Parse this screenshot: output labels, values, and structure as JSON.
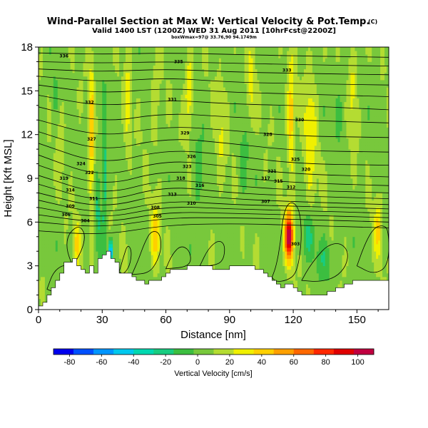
{
  "chart_data": {
    "type": "heatmap",
    "title": "Wind-Parallel Section at Max W: Vertical Velocity & Pot.Temp.",
    "title_mark": "(C)",
    "subtitle": "Valid 1400 LST (1200Z) WED 31 Aug 2011 [10hrFcst@2200Z]",
    "subsubtitle": "boxWmax=97@ 33.76,90 94.1749m",
    "xlabel": "Distance [nm]",
    "ylabel": "Height [Kft MSL]",
    "xlim": [
      0,
      165
    ],
    "ylim": [
      0,
      18
    ],
    "x_ticks": [
      0,
      30,
      60,
      90,
      120,
      150
    ],
    "y_ticks": [
      0,
      3,
      6,
      9,
      12,
      15,
      18
    ],
    "colorbar": {
      "label": "Vertical Velocity [cm/s]",
      "range": [
        -90,
        110
      ],
      "ticks": [
        -80,
        -60,
        -40,
        -20,
        0,
        20,
        40,
        60,
        80,
        100
      ],
      "colors": [
        "#0000ee",
        "#0050ff",
        "#0095ff",
        "#00c8ee",
        "#00d8b0",
        "#18cc80",
        "#3cbe40",
        "#78c83c",
        "#b4dc32",
        "#f0f000",
        "#ffd000",
        "#ffa000",
        "#ff6800",
        "#ff2800",
        "#e00000",
        "#c00040"
      ]
    },
    "terrain": [
      [
        0,
        0.3
      ],
      [
        2,
        0.5
      ],
      [
        4,
        1.0
      ],
      [
        6,
        1.5
      ],
      [
        8,
        2.0
      ],
      [
        10,
        2.6
      ],
      [
        12,
        3.2
      ],
      [
        14,
        3.3
      ],
      [
        16,
        3.6
      ],
      [
        18,
        3.0
      ],
      [
        20,
        2.8
      ],
      [
        22,
        2.5
      ],
      [
        24,
        3.0
      ],
      [
        26,
        2.6
      ],
      [
        28,
        3.4
      ],
      [
        30,
        3.8
      ],
      [
        32,
        4.0
      ],
      [
        34,
        3.6
      ],
      [
        36,
        3.2
      ],
      [
        38,
        2.6
      ],
      [
        40,
        2.4
      ],
      [
        42,
        2.5
      ],
      [
        44,
        2.3
      ],
      [
        46,
        2.0
      ],
      [
        50,
        1.8
      ],
      [
        55,
        2.0
      ],
      [
        60,
        2.6
      ],
      [
        65,
        2.8
      ],
      [
        70,
        2.9
      ],
      [
        75,
        3.0
      ],
      [
        80,
        2.9
      ],
      [
        85,
        2.8
      ],
      [
        90,
        2.9
      ],
      [
        95,
        3.0
      ],
      [
        100,
        2.9
      ],
      [
        105,
        2.6
      ],
      [
        110,
        2.0
      ],
      [
        114,
        1.6
      ],
      [
        118,
        1.8
      ],
      [
        122,
        1.2
      ],
      [
        126,
        1.0
      ],
      [
        132,
        1.0
      ],
      [
        138,
        1.2
      ],
      [
        142,
        1.6
      ],
      [
        146,
        1.8
      ],
      [
        150,
        2.0
      ],
      [
        156,
        2.0
      ],
      [
        160,
        2.0
      ],
      [
        165,
        2.0
      ]
    ],
    "updrafts": [
      {
        "x": 118,
        "z": 5.0,
        "amp": 97,
        "sx": 2.0,
        "sz": 1.7
      },
      {
        "x": 119,
        "z": 13.0,
        "amp": 38,
        "sx": 1.8,
        "sz": 4.0
      },
      {
        "x": 128,
        "z": 12.0,
        "amp": 26,
        "sx": 3.0,
        "sz": 4.5
      },
      {
        "x": 25,
        "z": 12.0,
        "amp": 36,
        "sx": 1.2,
        "sz": 6.0
      },
      {
        "x": 18,
        "z": 4.5,
        "amp": 30,
        "sx": 1.5,
        "sz": 1.5
      },
      {
        "x": 55,
        "z": 5.0,
        "amp": 34,
        "sx": 2.0,
        "sz": 2.2
      },
      {
        "x": 55,
        "z": 14.0,
        "amp": 16,
        "sx": 2.0,
        "sz": 3.0
      },
      {
        "x": 42,
        "z": 14.0,
        "amp": 20,
        "sx": 1.5,
        "sz": 4.0
      },
      {
        "x": 71,
        "z": 15.0,
        "amp": 32,
        "sx": 2.0,
        "sz": 2.5
      },
      {
        "x": 100,
        "z": 15.0,
        "amp": 20,
        "sx": 2.0,
        "sz": 3.0
      },
      {
        "x": 148,
        "z": 15.0,
        "amp": 22,
        "sx": 2.0,
        "sz": 3.0
      },
      {
        "x": 160,
        "z": 5.5,
        "amp": 30,
        "sx": 2.0,
        "sz": 2.0
      },
      {
        "x": 10,
        "z": 12.0,
        "amp": 14,
        "sx": 2.0,
        "sz": 3.0
      },
      {
        "x": 86,
        "z": 12.0,
        "amp": 16,
        "sx": 2.5,
        "sz": 3.5
      }
    ],
    "downdrafts": [
      {
        "x": 34,
        "z": 4.0,
        "amp": 70,
        "sx": 1.0,
        "sz": 0.8
      },
      {
        "x": 31,
        "z": 9.0,
        "amp": 34,
        "sx": 1.0,
        "sz": 5.0
      },
      {
        "x": 28,
        "z": 7.0,
        "amp": 24,
        "sx": 1.2,
        "sz": 3.0
      },
      {
        "x": 127,
        "z": 5.0,
        "amp": 22,
        "sx": 3.0,
        "sz": 1.5
      },
      {
        "x": 135,
        "z": 3.5,
        "amp": 18,
        "sx": 4.0,
        "sz": 1.5
      },
      {
        "x": 75,
        "z": 9.0,
        "amp": 12,
        "sx": 3.0,
        "sz": 4.0
      },
      {
        "x": 97,
        "z": 10.0,
        "amp": 10,
        "sx": 3.0,
        "sz": 4.0
      },
      {
        "x": 8,
        "z": 14.0,
        "amp": 10,
        "sx": 2.0,
        "sz": 3.0
      },
      {
        "x": 142,
        "z": 14.0,
        "amp": 10,
        "sx": 3.0,
        "sz": 3.0
      }
    ],
    "isentropes": [
      [
        [
          0,
          17.6
        ],
        [
          30,
          17.5
        ],
        [
          60,
          17.6
        ],
        [
          90,
          17.5
        ],
        [
          120,
          17.4
        ],
        [
          165,
          17.3
        ]
      ],
      [
        [
          0,
          17.0
        ],
        [
          30,
          16.9
        ],
        [
          60,
          17.0
        ],
        [
          90,
          16.9
        ],
        [
          120,
          16.8
        ],
        [
          165,
          16.7
        ]
      ],
      [
        [
          0,
          16.5
        ],
        [
          30,
          16.3
        ],
        [
          60,
          16.5
        ],
        [
          90,
          16.3
        ],
        [
          120,
          16.2
        ],
        [
          165,
          16.1
        ]
      ],
      [
        [
          0,
          16.0
        ],
        [
          30,
          15.6
        ],
        [
          60,
          15.9
        ],
        [
          90,
          15.6
        ],
        [
          120,
          15.5
        ],
        [
          165,
          15.4
        ]
      ],
      [
        [
          0,
          15.4
        ],
        [
          30,
          14.8
        ],
        [
          60,
          15.2
        ],
        [
          90,
          14.9
        ],
        [
          120,
          14.8
        ],
        [
          165,
          14.6
        ]
      ],
      [
        [
          0,
          14.7
        ],
        [
          30,
          13.9
        ],
        [
          60,
          14.4
        ],
        [
          90,
          14.1
        ],
        [
          120,
          14.0
        ],
        [
          165,
          13.7
        ]
      ],
      [
        [
          0,
          13.9
        ],
        [
          30,
          12.8
        ],
        [
          60,
          13.5
        ],
        [
          90,
          13.2
        ],
        [
          120,
          13.0
        ],
        [
          165,
          12.8
        ]
      ],
      [
        [
          0,
          13.0
        ],
        [
          30,
          11.8
        ],
        [
          60,
          12.6
        ],
        [
          90,
          12.3
        ],
        [
          120,
          11.9
        ],
        [
          165,
          11.8
        ]
      ],
      [
        [
          0,
          12.2
        ],
        [
          30,
          10.8
        ],
        [
          60,
          11.8
        ],
        [
          90,
          11.4
        ],
        [
          120,
          10.9
        ],
        [
          165,
          10.8
        ]
      ],
      [
        [
          0,
          11.4
        ],
        [
          30,
          9.9
        ],
        [
          60,
          11.0
        ],
        [
          90,
          10.6
        ],
        [
          120,
          10.0
        ],
        [
          165,
          9.9
        ]
      ],
      [
        [
          0,
          10.6
        ],
        [
          30,
          9.0
        ],
        [
          60,
          10.3
        ],
        [
          90,
          9.8
        ],
        [
          120,
          9.3
        ],
        [
          165,
          9.1
        ]
      ],
      [
        [
          0,
          9.9
        ],
        [
          30,
          8.4
        ],
        [
          60,
          9.6
        ],
        [
          90,
          9.1
        ],
        [
          120,
          8.7
        ],
        [
          165,
          8.5
        ]
      ],
      [
        [
          0,
          9.2
        ],
        [
          30,
          7.8
        ],
        [
          60,
          9.0
        ],
        [
          90,
          8.5
        ],
        [
          120,
          8.2
        ],
        [
          165,
          8.0
        ]
      ],
      [
        [
          0,
          8.6
        ],
        [
          30,
          7.3
        ],
        [
          60,
          8.5
        ],
        [
          90,
          8.0
        ],
        [
          120,
          7.8
        ],
        [
          165,
          7.6
        ]
      ],
      [
        [
          0,
          8.0
        ],
        [
          30,
          6.9
        ],
        [
          60,
          8.0
        ],
        [
          90,
          7.6
        ],
        [
          120,
          7.4
        ],
        [
          165,
          7.2
        ]
      ],
      [
        [
          0,
          7.5
        ],
        [
          30,
          6.5
        ],
        [
          60,
          7.5
        ],
        [
          90,
          7.2
        ],
        [
          120,
          7.1
        ],
        [
          165,
          6.9
        ]
      ],
      [
        [
          0,
          7.0
        ],
        [
          30,
          6.2
        ],
        [
          60,
          7.1
        ],
        [
          90,
          6.9
        ],
        [
          120,
          6.8
        ],
        [
          165,
          6.6
        ]
      ],
      [
        [
          0,
          6.5
        ],
        [
          30,
          5.9
        ],
        [
          60,
          6.7
        ],
        [
          90,
          6.6
        ],
        [
          120,
          6.5
        ],
        [
          165,
          6.3
        ]
      ],
      [
        [
          0,
          6.0
        ],
        [
          30,
          5.6
        ],
        [
          60,
          6.3
        ],
        [
          90,
          6.3
        ],
        [
          120,
          6.2
        ],
        [
          165,
          6.0
        ]
      ],
      [
        [
          0,
          5.4
        ],
        [
          30,
          5.1
        ],
        [
          60,
          5.8
        ],
        [
          90,
          5.9
        ],
        [
          120,
          5.8
        ],
        [
          165,
          5.6
        ]
      ]
    ],
    "isentrope_labels": [
      {
        "x": 12,
        "z": 17.4,
        "text": "336"
      },
      {
        "x": 66,
        "z": 17.0,
        "text": "335"
      },
      {
        "x": 117,
        "z": 16.4,
        "text": "333"
      },
      {
        "x": 24,
        "z": 14.2,
        "text": "332"
      },
      {
        "x": 63,
        "z": 14.4,
        "text": "331"
      },
      {
        "x": 123,
        "z": 13.0,
        "text": "330"
      },
      {
        "x": 69,
        "z": 12.1,
        "text": "329"
      },
      {
        "x": 108,
        "z": 12.0,
        "text": "328"
      },
      {
        "x": 25,
        "z": 11.7,
        "text": "327"
      },
      {
        "x": 72,
        "z": 10.5,
        "text": "326"
      },
      {
        "x": 121,
        "z": 10.3,
        "text": "325"
      },
      {
        "x": 20,
        "z": 10.0,
        "text": "324"
      },
      {
        "x": 70,
        "z": 9.8,
        "text": "323"
      },
      {
        "x": 24,
        "z": 9.4,
        "text": "322"
      },
      {
        "x": 110,
        "z": 9.5,
        "text": "321"
      },
      {
        "x": 126,
        "z": 9.6,
        "text": "320"
      },
      {
        "x": 12,
        "z": 9.0,
        "text": "319"
      },
      {
        "x": 67,
        "z": 9.0,
        "text": "318"
      },
      {
        "x": 107,
        "z": 9.0,
        "text": "317"
      },
      {
        "x": 76,
        "z": 8.5,
        "text": "316"
      },
      {
        "x": 113,
        "z": 8.8,
        "text": "315"
      },
      {
        "x": 15,
        "z": 8.2,
        "text": "314"
      },
      {
        "x": 63,
        "z": 7.9,
        "text": "313"
      },
      {
        "x": 119,
        "z": 8.4,
        "text": "312"
      },
      {
        "x": 26,
        "z": 7.6,
        "text": "311"
      },
      {
        "x": 72,
        "z": 7.3,
        "text": "310"
      },
      {
        "x": 15,
        "z": 7.1,
        "text": "309"
      },
      {
        "x": 55,
        "z": 7.0,
        "text": "308"
      },
      {
        "x": 107,
        "z": 7.4,
        "text": "307"
      },
      {
        "x": 13,
        "z": 6.5,
        "text": "306"
      },
      {
        "x": 56,
        "z": 6.4,
        "text": "305"
      },
      {
        "x": 22,
        "z": 6.1,
        "text": "304"
      },
      {
        "x": 121,
        "z": 4.5,
        "text": "303"
      }
    ],
    "w_contours": [
      [
        [
          16,
          3.0
        ],
        [
          18,
          3.4
        ],
        [
          21,
          4.3
        ],
        [
          22,
          5.2
        ],
        [
          19,
          5.8
        ],
        [
          14,
          5.2
        ],
        [
          13,
          4.2
        ],
        [
          16,
          3.0
        ]
      ],
      [
        [
          44,
          2.4
        ],
        [
          47,
          3.4
        ],
        [
          50,
          4.6
        ],
        [
          53,
          5.4
        ],
        [
          57,
          5.3
        ],
        [
          58,
          4.3
        ],
        [
          56,
          3.3
        ],
        [
          52,
          2.5
        ],
        [
          44,
          2.4
        ]
      ],
      [
        [
          110,
          2.2
        ],
        [
          112,
          3.0
        ],
        [
          114,
          4.6
        ],
        [
          115,
          6.2
        ],
        [
          117,
          7.2
        ],
        [
          120,
          7.4
        ],
        [
          123,
          6.8
        ],
        [
          124,
          5.2
        ],
        [
          123,
          3.5
        ],
        [
          121,
          2.4
        ],
        [
          117,
          2.0
        ],
        [
          112,
          1.9
        ],
        [
          110,
          2.2
        ]
      ],
      [
        [
          124,
          2.0
        ],
        [
          127,
          2.8
        ],
        [
          131,
          3.6
        ],
        [
          136,
          4.4
        ],
        [
          142,
          4.6
        ],
        [
          146,
          4.0
        ],
        [
          145,
          3.0
        ],
        [
          140,
          2.2
        ],
        [
          132,
          1.9
        ],
        [
          124,
          2.0
        ]
      ],
      [
        [
          60,
          2.8
        ],
        [
          63,
          3.8
        ],
        [
          67,
          4.4
        ],
        [
          71,
          4.1
        ],
        [
          72,
          3.3
        ],
        [
          69,
          2.9
        ],
        [
          60,
          2.8
        ]
      ],
      [
        [
          76,
          3.0
        ],
        [
          80,
          4.2
        ],
        [
          85,
          4.8
        ],
        [
          88,
          4.4
        ],
        [
          87,
          3.3
        ],
        [
          82,
          3.0
        ],
        [
          76,
          3.0
        ]
      ],
      [
        [
          150,
          3.0
        ],
        [
          154,
          4.6
        ],
        [
          158,
          5.6
        ],
        [
          162,
          5.8
        ],
        [
          165,
          5.5
        ],
        [
          165,
          3.0
        ],
        [
          158,
          2.4
        ],
        [
          150,
          3.0
        ]
      ],
      [
        [
          4,
          1.4
        ],
        [
          7,
          2.6
        ],
        [
          12,
          3.1
        ],
        [
          14,
          2.8
        ],
        [
          11,
          2.0
        ],
        [
          7,
          1.2
        ],
        [
          4,
          1.4
        ]
      ],
      [
        [
          38,
          2.6
        ],
        [
          40,
          3.6
        ],
        [
          42,
          4.5
        ],
        [
          44,
          4.0
        ],
        [
          43,
          3.0
        ],
        [
          40,
          2.4
        ],
        [
          38,
          2.6
        ]
      ]
    ]
  }
}
